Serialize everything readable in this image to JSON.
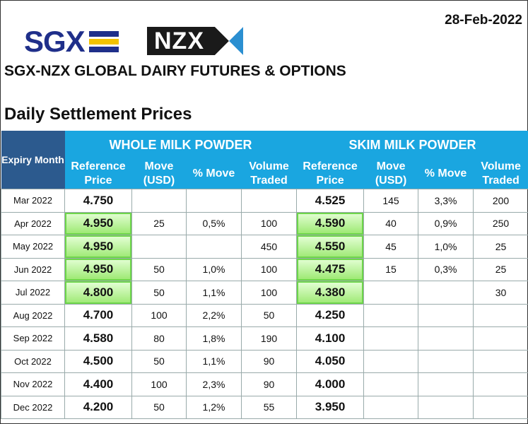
{
  "date": "28-Feb-2022",
  "logos": {
    "sgx": "SGX",
    "nzx": "NZX",
    "sgx_colors": [
      "#1f2f8a",
      "#f2c200",
      "#1f2f8a"
    ]
  },
  "title": "SGX-NZX GLOBAL DAIRY FUTURES & OPTIONS",
  "subtitle": "Daily Settlement Prices",
  "table": {
    "expiry_header": "Expiry Month",
    "groups": [
      "WHOLE MILK POWDER",
      "SKIM MILK POWDER"
    ],
    "columns": [
      "Reference Price",
      "Move (USD)",
      "% Move",
      "Volume Traded",
      "Reference Price",
      "Move (USD)",
      "% Move",
      "Volume Traded"
    ],
    "highlight_color": "#8ee565",
    "rows": [
      {
        "month": "Mar 2022",
        "wmp_ref": "4.750",
        "wmp_move": "",
        "wmp_pct": "",
        "wmp_vol": "",
        "smp_ref": "4.525",
        "smp_move": "145",
        "smp_pct": "3,3%",
        "smp_vol": "200",
        "hl": false
      },
      {
        "month": "Apr 2022",
        "wmp_ref": "4.950",
        "wmp_move": "25",
        "wmp_pct": "0,5%",
        "wmp_vol": "100",
        "smp_ref": "4.590",
        "smp_move": "40",
        "smp_pct": "0,9%",
        "smp_vol": "250",
        "hl": true
      },
      {
        "month": "May 2022",
        "wmp_ref": "4.950",
        "wmp_move": "",
        "wmp_pct": "",
        "wmp_vol": "450",
        "smp_ref": "4.550",
        "smp_move": "45",
        "smp_pct": "1,0%",
        "smp_vol": "25",
        "hl": true
      },
      {
        "month": "Jun 2022",
        "wmp_ref": "4.950",
        "wmp_move": "50",
        "wmp_pct": "1,0%",
        "wmp_vol": "100",
        "smp_ref": "4.475",
        "smp_move": "15",
        "smp_pct": "0,3%",
        "smp_vol": "25",
        "hl": true
      },
      {
        "month": "Jul 2022",
        "wmp_ref": "4.800",
        "wmp_move": "50",
        "wmp_pct": "1,1%",
        "wmp_vol": "100",
        "smp_ref": "4.380",
        "smp_move": "",
        "smp_pct": "",
        "smp_vol": "30",
        "hl": true
      },
      {
        "month": "Aug 2022",
        "wmp_ref": "4.700",
        "wmp_move": "100",
        "wmp_pct": "2,2%",
        "wmp_vol": "50",
        "smp_ref": "4.250",
        "smp_move": "",
        "smp_pct": "",
        "smp_vol": "",
        "hl": false
      },
      {
        "month": "Sep 2022",
        "wmp_ref": "4.580",
        "wmp_move": "80",
        "wmp_pct": "1,8%",
        "wmp_vol": "190",
        "smp_ref": "4.100",
        "smp_move": "",
        "smp_pct": "",
        "smp_vol": "",
        "hl": false
      },
      {
        "month": "Oct 2022",
        "wmp_ref": "4.500",
        "wmp_move": "50",
        "wmp_pct": "1,1%",
        "wmp_vol": "90",
        "smp_ref": "4.050",
        "smp_move": "",
        "smp_pct": "",
        "smp_vol": "",
        "hl": false
      },
      {
        "month": "Nov 2022",
        "wmp_ref": "4.400",
        "wmp_move": "100",
        "wmp_pct": "2,3%",
        "wmp_vol": "90",
        "smp_ref": "4.000",
        "smp_move": "",
        "smp_pct": "",
        "smp_vol": "",
        "hl": false
      },
      {
        "month": "Dec 2022",
        "wmp_ref": "4.200",
        "wmp_move": "50",
        "wmp_pct": "1,2%",
        "wmp_vol": "55",
        "smp_ref": "3.950",
        "smp_move": "",
        "smp_pct": "",
        "smp_vol": "",
        "hl": false
      }
    ]
  }
}
